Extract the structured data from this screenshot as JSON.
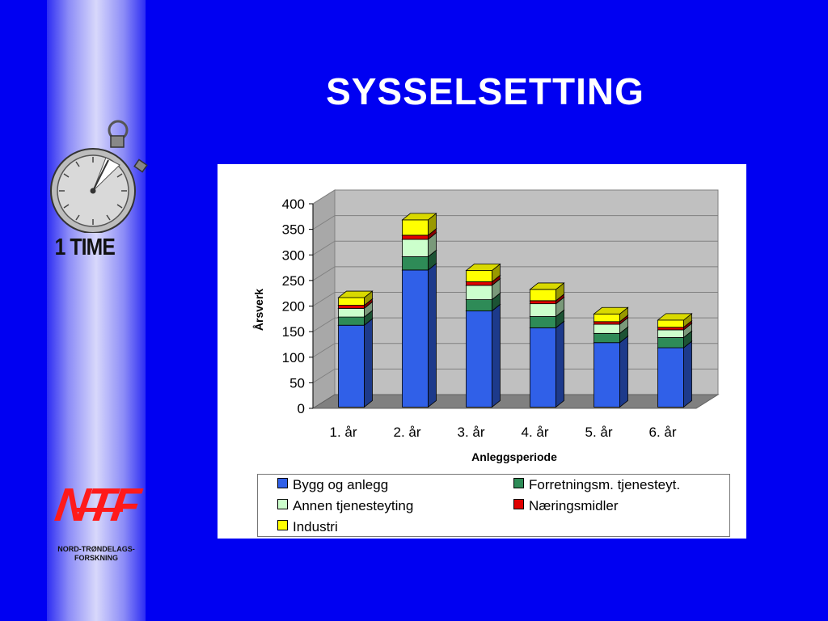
{
  "slide": {
    "title": "SYSSELSETTING",
    "side_label": "1 TIME",
    "logo_text": "NTF",
    "logo_subtitle_1": "NORD-TRØNDELAGS-",
    "logo_subtitle_2": "FORSKNING"
  },
  "icons": [
    "stopwatch-icon",
    "ntf-logo"
  ],
  "chart_data": {
    "type": "bar",
    "stacked": true,
    "style": "3d",
    "categories": [
      "1. år",
      "2. år",
      "3. år",
      "4. år",
      "5. år",
      "6. år"
    ],
    "series": [
      {
        "name": "Bygg og anlegg",
        "color": "#3060e8",
        "values": [
          160,
          268,
          188,
          155,
          126,
          116
        ]
      },
      {
        "name": "Forretningsm. tjenesteyt.",
        "color": "#2e8b57",
        "values": [
          16,
          26,
          22,
          22,
          18,
          20
        ]
      },
      {
        "name": "Annen tjenesteyting",
        "color": "#ccffcc",
        "values": [
          17,
          34,
          28,
          25,
          18,
          15
        ]
      },
      {
        "name": "Næringsmidler",
        "color": "#e00000",
        "values": [
          6,
          8,
          7,
          6,
          5,
          5
        ]
      },
      {
        "name": "Industri",
        "color": "#ffff00",
        "values": [
          15,
          30,
          22,
          22,
          15,
          14
        ]
      }
    ],
    "xlabel": "Anleggsperiode",
    "ylabel": "Årsverk",
    "ylim": [
      0,
      400
    ],
    "yticks": [
      "0",
      "50",
      "100",
      "150",
      "200",
      "250",
      "300",
      "350",
      "400"
    ],
    "grid": true,
    "legend_position": "bottom"
  }
}
